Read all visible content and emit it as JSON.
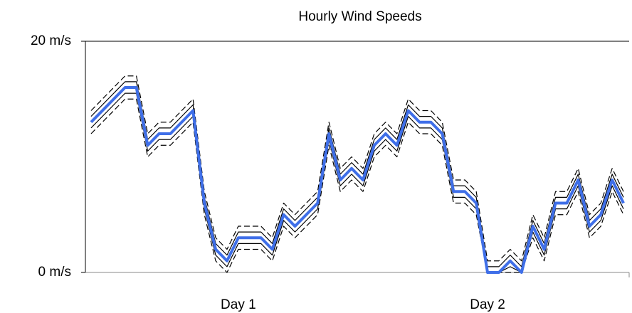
{
  "chart_data": {
    "type": "line",
    "title": "Hourly Wind Speeds",
    "categories": [
      null,
      null,
      null,
      null,
      null,
      null,
      null,
      null,
      null,
      null,
      null,
      null,
      null,
      "Day 1",
      null,
      null,
      null,
      null,
      null,
      null,
      null,
      null,
      null,
      null,
      null,
      null,
      null,
      null,
      null,
      null,
      null,
      null,
      null,
      null,
      null,
      "Day 2",
      null,
      null,
      null,
      null,
      null,
      null,
      null,
      null,
      null,
      null,
      null,
      null
    ],
    "ylim": [
      0,
      20
    ],
    "yticks": [
      {
        "value": 0,
        "label": "0 m/s"
      },
      {
        "value": 20,
        "label": "20 m/s"
      }
    ],
    "grid": false,
    "series": [
      {
        "color": "#000000",
        "dash": true,
        "width": 1.2,
        "values": [
          14,
          15,
          16,
          17,
          17,
          12,
          13,
          13,
          14,
          15,
          7,
          3,
          2,
          4,
          4,
          4,
          3,
          6,
          5,
          6,
          7,
          13,
          9,
          10,
          9,
          12,
          13,
          12,
          15,
          14,
          14,
          13,
          8,
          8,
          7,
          1,
          1,
          2,
          1,
          5,
          3,
          7,
          7,
          9,
          5,
          6,
          9,
          7
        ]
      },
      {
        "color": "#000000",
        "dash": false,
        "width": 1.2,
        "values": [
          13.5,
          14.5,
          15.5,
          16.5,
          16.5,
          11.5,
          12.5,
          12.5,
          13.5,
          14.5,
          6.5,
          2.5,
          1.5,
          3.5,
          3.5,
          3.5,
          2.5,
          5.5,
          4.5,
          5.5,
          6.5,
          12.5,
          8.5,
          9.5,
          8.5,
          11.5,
          12.5,
          11.5,
          14.5,
          13.5,
          13.5,
          12.5,
          7.5,
          7.5,
          6.5,
          0.5,
          0.5,
          1.5,
          0.5,
          4.5,
          2.5,
          6.5,
          6.5,
          8.5,
          4.5,
          5.5,
          8.5,
          6.5
        ]
      },
      {
        "color": "#000000",
        "dash": false,
        "width": 1.2,
        "values": [
          12.5,
          13.5,
          14.5,
          15.5,
          15.5,
          10.5,
          11.5,
          11.5,
          12.5,
          13.5,
          5.5,
          1.5,
          0.5,
          2.5,
          2.5,
          2.5,
          1.5,
          4.5,
          3.5,
          4.5,
          5.5,
          11.5,
          7.5,
          8.5,
          7.5,
          10.5,
          11.5,
          10.5,
          13.5,
          12.5,
          12.5,
          11.5,
          6.5,
          6.5,
          5.5,
          0,
          0,
          0.5,
          0,
          3.5,
          1.5,
          5.5,
          5.5,
          7.5,
          3.5,
          4.5,
          7.5,
          5.5
        ]
      },
      {
        "color": "#000000",
        "dash": true,
        "width": 1.2,
        "values": [
          12,
          13,
          14,
          15,
          15,
          10,
          11,
          11,
          12,
          13,
          5,
          1,
          0,
          2,
          2,
          2,
          1,
          4,
          3,
          4,
          5,
          11,
          7,
          8,
          7,
          10,
          11,
          10,
          13,
          12,
          12,
          11,
          6,
          6,
          5,
          0,
          0,
          0,
          0,
          3,
          1,
          5,
          5,
          7,
          3,
          4,
          7,
          5
        ]
      },
      {
        "color": "#3f6fe8",
        "dash": false,
        "width": 4,
        "values": [
          13,
          14,
          15,
          16,
          16,
          11,
          12,
          12,
          13,
          14,
          6,
          2,
          1,
          3,
          3,
          3,
          2,
          5,
          4,
          5,
          6,
          12,
          8,
          9,
          8,
          11,
          12,
          11,
          14,
          13,
          13,
          12,
          7,
          7,
          6,
          0,
          0,
          1,
          0,
          4,
          2,
          6,
          6,
          8,
          4,
          5,
          8,
          6
        ]
      }
    ]
  }
}
